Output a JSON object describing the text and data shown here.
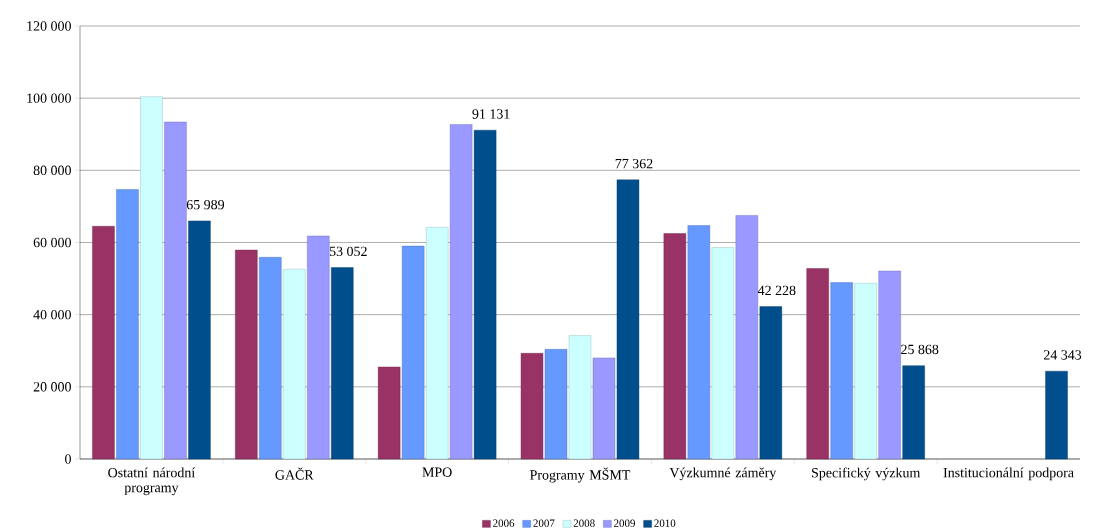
{
  "chart_data": {
    "type": "bar",
    "categories": [
      "Ostatní národní programy",
      "GAČR",
      "MPO",
      "Programy MŠMT",
      "Výzkumné záměry",
      "Specifický výzkum",
      "Institucionální podpora"
    ],
    "series": [
      {
        "name": "2006",
        "color": "#993366",
        "values": [
          64500,
          57900,
          25500,
          29300,
          62500,
          52800,
          null
        ]
      },
      {
        "name": "2007",
        "color": "#6699ff",
        "values": [
          74700,
          55900,
          59000,
          30400,
          64700,
          48900,
          null
        ]
      },
      {
        "name": "2008",
        "color": "#ccffff",
        "values": [
          100400,
          52600,
          64200,
          34200,
          58600,
          48700,
          null
        ]
      },
      {
        "name": "2009",
        "color": "#9999ff",
        "values": [
          93400,
          61800,
          92700,
          28000,
          67500,
          52100,
          null
        ]
      },
      {
        "name": "2010",
        "color": "#004f8c",
        "values": [
          65989,
          53052,
          91131,
          77362,
          42228,
          25868,
          24343
        ],
        "value_labels": [
          "65 989",
          "53 052",
          "91 131",
          "77 362",
          "42 228",
          "25 868",
          "24 343"
        ]
      }
    ],
    "ylim": [
      0,
      120000
    ],
    "yticks": [
      {
        "value": 0,
        "label": "0"
      },
      {
        "value": 20000,
        "label": "20 000"
      },
      {
        "value": 40000,
        "label": "40 000"
      },
      {
        "value": 60000,
        "label": "60 000"
      },
      {
        "value": 80000,
        "label": "80 000"
      },
      {
        "value": 100000,
        "label": "100 000"
      },
      {
        "value": 120000,
        "label": "120 000"
      }
    ],
    "grid": "y",
    "legend": "bottom"
  }
}
